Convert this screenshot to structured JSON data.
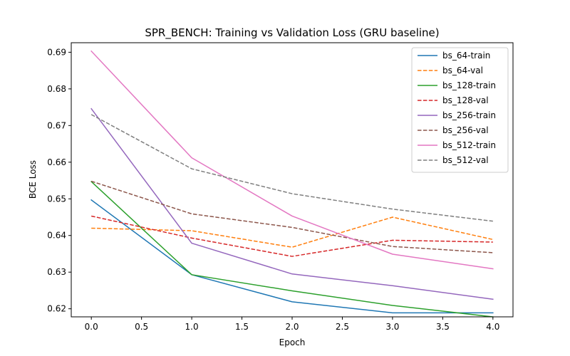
{
  "chart_data": {
    "type": "line",
    "title": "SPR_BENCH: Training vs Validation Loss (GRU baseline)",
    "xlabel": "Epoch",
    "ylabel": "BCE Loss",
    "xlim": [
      -0.2,
      4.2
    ],
    "ylim": [
      0.6178,
      0.6926
    ],
    "xticks": [
      0.0,
      0.5,
      1.0,
      1.5,
      2.0,
      2.5,
      3.0,
      3.5,
      4.0
    ],
    "xtick_labels": [
      "0.0",
      "0.5",
      "1.0",
      "1.5",
      "2.0",
      "2.5",
      "3.0",
      "3.5",
      "4.0"
    ],
    "yticks": [
      0.62,
      0.63,
      0.64,
      0.65,
      0.66,
      0.67,
      0.68,
      0.69
    ],
    "ytick_labels": [
      "0.62",
      "0.63",
      "0.64",
      "0.65",
      "0.66",
      "0.67",
      "0.68",
      "0.69"
    ],
    "grid": false,
    "legend_position": "top-right",
    "x": [
      0,
      1,
      2,
      3,
      4
    ],
    "series": [
      {
        "name": "bs_64-train",
        "color": "#1f77b4",
        "dash": "solid",
        "values": [
          0.6497,
          0.6293,
          0.6219,
          0.6189,
          0.6189
        ]
      },
      {
        "name": "bs_64-val",
        "color": "#ff7f0e",
        "dash": "dashed",
        "values": [
          0.642,
          0.6413,
          0.6368,
          0.645,
          0.6389
        ]
      },
      {
        "name": "bs_128-train",
        "color": "#2ca02c",
        "dash": "solid",
        "values": [
          0.6547,
          0.6293,
          0.6249,
          0.6209,
          0.6178
        ]
      },
      {
        "name": "bs_128-val",
        "color": "#d62728",
        "dash": "dashed",
        "values": [
          0.6453,
          0.6393,
          0.6343,
          0.6387,
          0.6382
        ]
      },
      {
        "name": "bs_256-train",
        "color": "#9467bd",
        "dash": "solid",
        "values": [
          0.6746,
          0.6379,
          0.6295,
          0.6263,
          0.6226
        ]
      },
      {
        "name": "bs_256-val",
        "color": "#8c564b",
        "dash": "dashed",
        "values": [
          0.6548,
          0.6459,
          0.6422,
          0.637,
          0.6353
        ]
      },
      {
        "name": "bs_512-train",
        "color": "#e377c2",
        "dash": "solid",
        "values": [
          0.6903,
          0.6612,
          0.6453,
          0.6349,
          0.6309
        ]
      },
      {
        "name": "bs_512-val",
        "color": "#7f7f7f",
        "dash": "dashed",
        "values": [
          0.673,
          0.6582,
          0.6514,
          0.6472,
          0.6439
        ]
      }
    ]
  }
}
